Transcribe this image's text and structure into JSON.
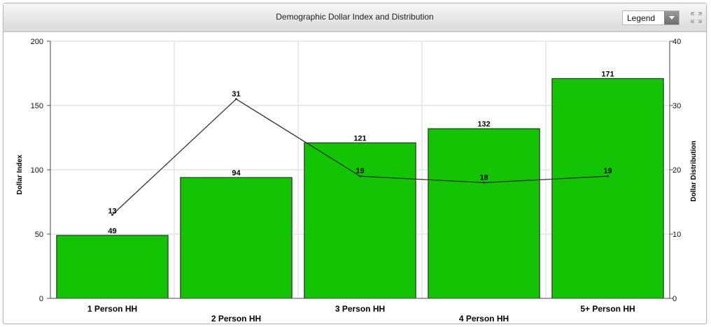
{
  "header": {
    "title": "Demographic Dollar Index and Distribution",
    "legend_select": {
      "selected": "Legend"
    },
    "expand_icon": "expand-icon"
  },
  "colors": {
    "bar_fill": "#13c403",
    "bar_stroke": "#1a1a1a",
    "line": "#333333",
    "grid": "#dfe6ee"
  },
  "chart_data": {
    "type": "bar",
    "categories": [
      "1 Person HH",
      "2 Person HH",
      "3 Person HH",
      "4 Person HH",
      "5+ Person HH"
    ],
    "series": [
      {
        "type": "bar",
        "axis": "left",
        "values": [
          49,
          94,
          121,
          132,
          171
        ]
      },
      {
        "type": "line",
        "axis": "right",
        "values": [
          13,
          31,
          19,
          18,
          19
        ]
      }
    ],
    "ylabel": "Dollar Index",
    "y2label": "Dollar Distribution",
    "ylim": [
      0,
      200
    ],
    "y2lim": [
      0,
      40
    ],
    "yticks": [
      0,
      50,
      100,
      150,
      200
    ],
    "y2ticks": [
      0,
      10,
      20,
      30,
      40
    ],
    "grid": true
  }
}
